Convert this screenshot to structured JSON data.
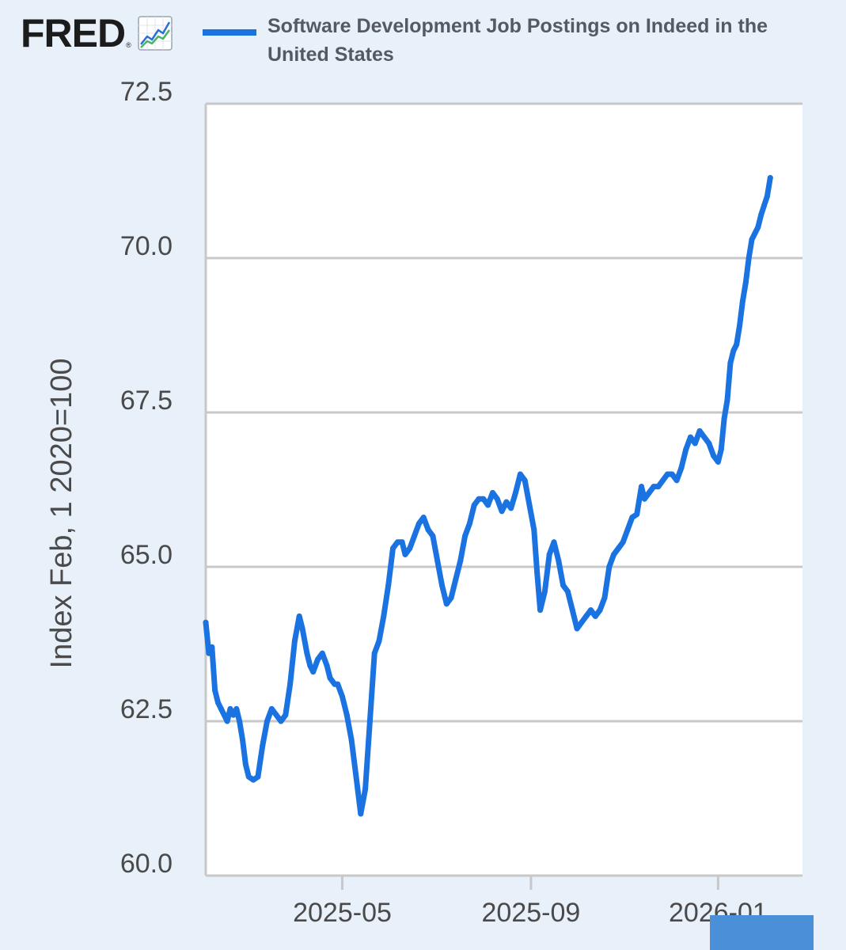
{
  "brand": {
    "logo_text": "FRED",
    "logo_mark": "®",
    "logo_icon": "trend-chart-icon"
  },
  "colors": {
    "background": "#e8f0fa",
    "plot_background": "#ffffff",
    "series": "#1a73e0",
    "grid": "#c8c8c8",
    "text": "#4a4a4a"
  },
  "chart_data": {
    "type": "line",
    "title": "",
    "xlabel": "",
    "ylabel": "Index Feb, 1 2020=100",
    "ylim": [
      60.0,
      72.5
    ],
    "yticks": [
      "60.0",
      "62.5",
      "65.0",
      "67.5",
      "70.0",
      "72.5"
    ],
    "xlim": [
      "2025-02-01",
      "2026-02-25"
    ],
    "xticks": [
      {
        "date": "2025-05-01",
        "label": "2025-05"
      },
      {
        "date": "2025-09-01",
        "label": "2025-09"
      },
      {
        "date": "2026-01-01",
        "label": "2026-01"
      }
    ],
    "grid": true,
    "legend_position": "top",
    "series": [
      {
        "name": "Software Development Job Postings on Indeed in the United States",
        "points": [
          [
            "2025-02-01",
            64.1
          ],
          [
            "2025-02-03",
            63.6
          ],
          [
            "2025-02-05",
            63.7
          ],
          [
            "2025-02-07",
            63.0
          ],
          [
            "2025-02-09",
            62.8
          ],
          [
            "2025-02-11",
            62.7
          ],
          [
            "2025-02-13",
            62.6
          ],
          [
            "2025-02-15",
            62.5
          ],
          [
            "2025-02-17",
            62.7
          ],
          [
            "2025-02-19",
            62.6
          ],
          [
            "2025-02-21",
            62.7
          ],
          [
            "2025-02-23",
            62.5
          ],
          [
            "2025-02-25",
            62.2
          ],
          [
            "2025-02-27",
            61.8
          ],
          [
            "2025-03-01",
            61.6
          ],
          [
            "2025-03-04",
            61.55
          ],
          [
            "2025-03-07",
            61.6
          ],
          [
            "2025-03-10",
            62.1
          ],
          [
            "2025-03-13",
            62.5
          ],
          [
            "2025-03-16",
            62.7
          ],
          [
            "2025-03-19",
            62.6
          ],
          [
            "2025-03-22",
            62.5
          ],
          [
            "2025-03-25",
            62.6
          ],
          [
            "2025-03-28",
            63.1
          ],
          [
            "2025-03-31",
            63.8
          ],
          [
            "2025-04-03",
            64.2
          ],
          [
            "2025-04-05",
            64.0
          ],
          [
            "2025-04-08",
            63.6
          ],
          [
            "2025-04-10",
            63.4
          ],
          [
            "2025-04-12",
            63.3
          ],
          [
            "2025-04-15",
            63.5
          ],
          [
            "2025-04-18",
            63.6
          ],
          [
            "2025-04-21",
            63.4
          ],
          [
            "2025-04-23",
            63.2
          ],
          [
            "2025-04-26",
            63.1
          ],
          [
            "2025-04-28",
            63.1
          ],
          [
            "2025-05-01",
            62.9
          ],
          [
            "2025-05-04",
            62.6
          ],
          [
            "2025-05-07",
            62.2
          ],
          [
            "2025-05-10",
            61.6
          ],
          [
            "2025-05-13",
            61.0
          ],
          [
            "2025-05-16",
            61.4
          ],
          [
            "2025-05-19",
            62.5
          ],
          [
            "2025-05-22",
            63.6
          ],
          [
            "2025-05-25",
            63.8
          ],
          [
            "2025-05-28",
            64.2
          ],
          [
            "2025-05-31",
            64.7
          ],
          [
            "2025-06-03",
            65.3
          ],
          [
            "2025-06-06",
            65.4
          ],
          [
            "2025-06-09",
            65.4
          ],
          [
            "2025-06-11",
            65.2
          ],
          [
            "2025-06-14",
            65.3
          ],
          [
            "2025-06-17",
            65.5
          ],
          [
            "2025-06-20",
            65.7
          ],
          [
            "2025-06-23",
            65.8
          ],
          [
            "2025-06-26",
            65.6
          ],
          [
            "2025-06-29",
            65.5
          ],
          [
            "2025-07-02",
            65.1
          ],
          [
            "2025-07-05",
            64.7
          ],
          [
            "2025-07-08",
            64.4
          ],
          [
            "2025-07-11",
            64.5
          ],
          [
            "2025-07-14",
            64.8
          ],
          [
            "2025-07-17",
            65.1
          ],
          [
            "2025-07-20",
            65.5
          ],
          [
            "2025-07-23",
            65.7
          ],
          [
            "2025-07-26",
            66.0
          ],
          [
            "2025-07-29",
            66.1
          ],
          [
            "2025-08-01",
            66.1
          ],
          [
            "2025-08-04",
            66.0
          ],
          [
            "2025-08-07",
            66.2
          ],
          [
            "2025-08-10",
            66.1
          ],
          [
            "2025-08-13",
            65.9
          ],
          [
            "2025-08-16",
            66.05
          ],
          [
            "2025-08-19",
            65.95
          ],
          [
            "2025-08-22",
            66.2
          ],
          [
            "2025-08-25",
            66.5
          ],
          [
            "2025-08-28",
            66.4
          ],
          [
            "2025-08-31",
            66.0
          ],
          [
            "2025-09-03",
            65.6
          ],
          [
            "2025-09-05",
            64.9
          ],
          [
            "2025-09-07",
            64.3
          ],
          [
            "2025-09-10",
            64.6
          ],
          [
            "2025-09-13",
            65.2
          ],
          [
            "2025-09-16",
            65.4
          ],
          [
            "2025-09-19",
            65.1
          ],
          [
            "2025-09-22",
            64.7
          ],
          [
            "2025-09-25",
            64.6
          ],
          [
            "2025-09-28",
            64.3
          ],
          [
            "2025-10-01",
            64.0
          ],
          [
            "2025-10-04",
            64.1
          ],
          [
            "2025-10-07",
            64.2
          ],
          [
            "2025-10-10",
            64.3
          ],
          [
            "2025-10-13",
            64.2
          ],
          [
            "2025-10-16",
            64.3
          ],
          [
            "2025-10-19",
            64.5
          ],
          [
            "2025-10-22",
            65.0
          ],
          [
            "2025-10-25",
            65.2
          ],
          [
            "2025-10-28",
            65.3
          ],
          [
            "2025-10-31",
            65.4
          ],
          [
            "2025-11-03",
            65.6
          ],
          [
            "2025-11-06",
            65.8
          ],
          [
            "2025-11-09",
            65.85
          ],
          [
            "2025-11-12",
            66.3
          ],
          [
            "2025-11-14",
            66.1
          ],
          [
            "2025-11-17",
            66.2
          ],
          [
            "2025-11-20",
            66.3
          ],
          [
            "2025-11-23",
            66.3
          ],
          [
            "2025-11-26",
            66.4
          ],
          [
            "2025-11-29",
            66.5
          ],
          [
            "2025-12-02",
            66.5
          ],
          [
            "2025-12-05",
            66.4
          ],
          [
            "2025-12-08",
            66.6
          ],
          [
            "2025-12-11",
            66.9
          ],
          [
            "2025-12-14",
            67.1
          ],
          [
            "2025-12-17",
            67.0
          ],
          [
            "2025-12-20",
            67.2
          ],
          [
            "2025-12-23",
            67.1
          ],
          [
            "2025-12-26",
            67.0
          ],
          [
            "2025-12-29",
            66.8
          ],
          [
            "2026-01-01",
            66.7
          ],
          [
            "2026-01-03",
            66.9
          ],
          [
            "2026-01-05",
            67.4
          ],
          [
            "2026-01-07",
            67.7
          ],
          [
            "2026-01-09",
            68.3
          ],
          [
            "2026-01-11",
            68.5
          ],
          [
            "2026-01-13",
            68.6
          ],
          [
            "2026-01-15",
            68.9
          ],
          [
            "2026-01-17",
            69.3
          ],
          [
            "2026-01-19",
            69.6
          ],
          [
            "2026-01-21",
            70.0
          ],
          [
            "2026-01-23",
            70.3
          ],
          [
            "2026-01-25",
            70.4
          ],
          [
            "2026-01-27",
            70.5
          ],
          [
            "2026-01-29",
            70.7
          ],
          [
            "2026-01-31",
            70.85
          ],
          [
            "2026-02-02",
            71.0
          ],
          [
            "2026-02-04",
            71.3
          ]
        ]
      }
    ]
  }
}
